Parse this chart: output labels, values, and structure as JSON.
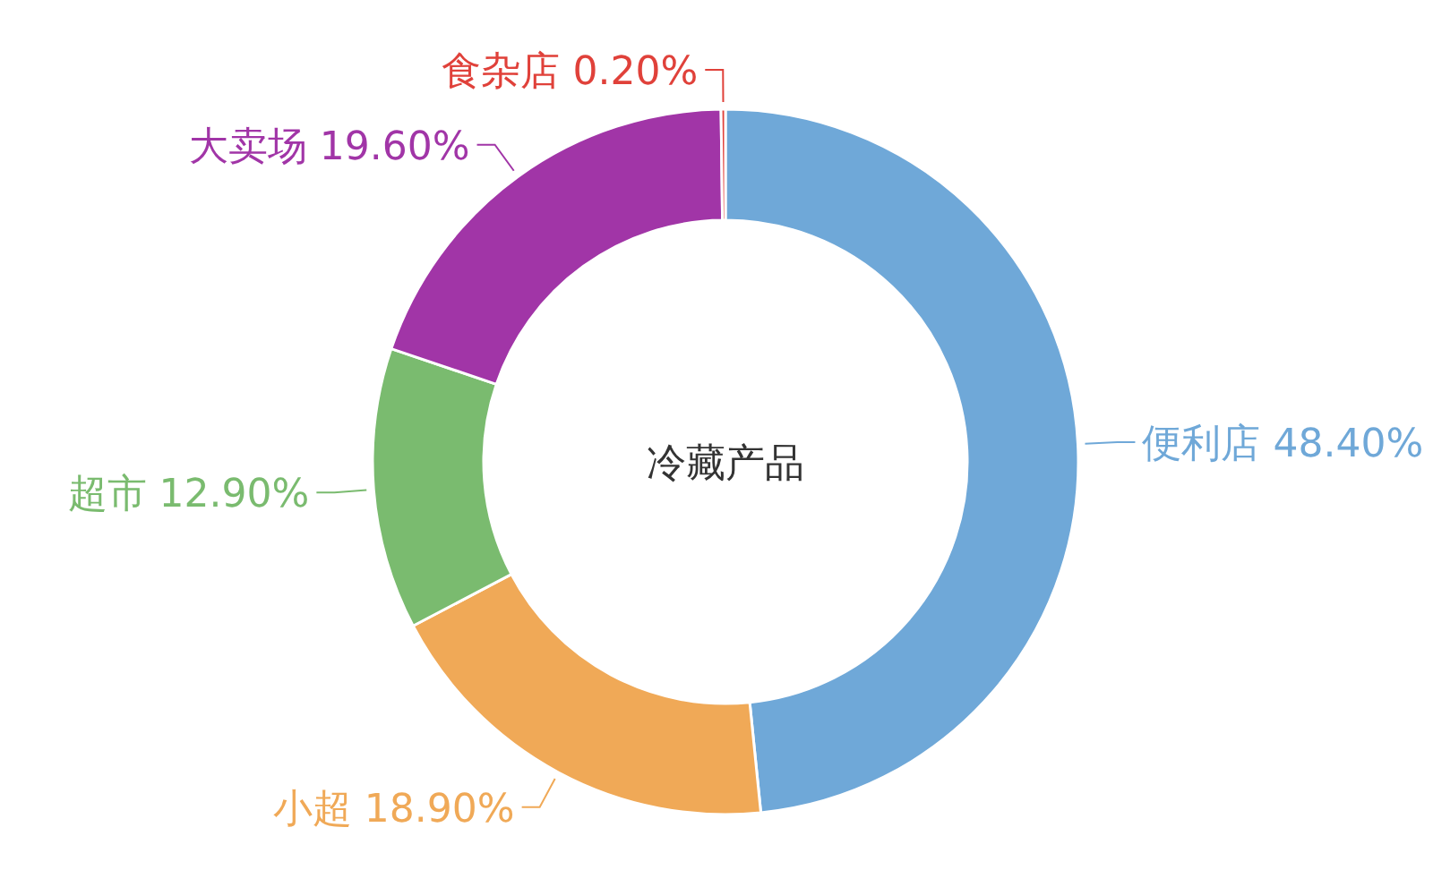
{
  "chart_data": {
    "type": "donut",
    "title": "冷藏产品",
    "categories": [
      "便利店",
      "小超",
      "超市",
      "大卖场",
      "食杂店"
    ],
    "values": [
      48.4,
      18.9,
      12.9,
      19.6,
      0.2
    ],
    "value_labels": [
      "48.40%",
      "18.90%",
      "12.90%",
      "19.60%",
      "0.20%"
    ],
    "colors": [
      "#6fa8d8",
      "#f0a957",
      "#7abb6f",
      "#a135a7",
      "#e0413a"
    ]
  }
}
